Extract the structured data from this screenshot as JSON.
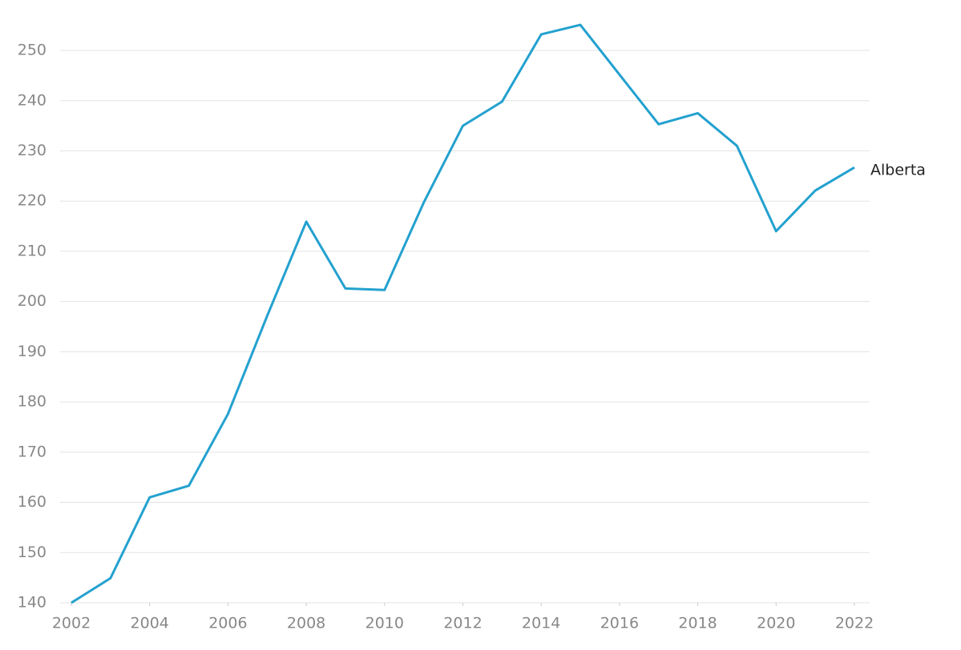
{
  "chart_data": {
    "type": "line",
    "x": [
      2002,
      2003,
      2004,
      2005,
      2006,
      2007,
      2008,
      2009,
      2010,
      2011,
      2012,
      2013,
      2014,
      2015,
      2016,
      2017,
      2018,
      2019,
      2020,
      2021,
      2022
    ],
    "series": [
      {
        "name": "Alberta",
        "color": "#23a1cf",
        "values": [
          140,
          144.9,
          161.0,
          163.3,
          177.6,
          197.1,
          215.9,
          202.6,
          202.3,
          219.7,
          235.0,
          239.8,
          253.2,
          255.1,
          245.2,
          235.3,
          237.5,
          231.0,
          214.0,
          222.1,
          226.7
        ]
      }
    ],
    "xlim": [
      2002,
      2022
    ],
    "xticks": [
      2002,
      2004,
      2006,
      2008,
      2010,
      2012,
      2014,
      2016,
      2018,
      2020,
      2022
    ],
    "ylim": [
      140,
      256
    ],
    "yticks": [
      140,
      150,
      160,
      170,
      180,
      190,
      200,
      210,
      220,
      230,
      240,
      250
    ],
    "grid": true
  }
}
